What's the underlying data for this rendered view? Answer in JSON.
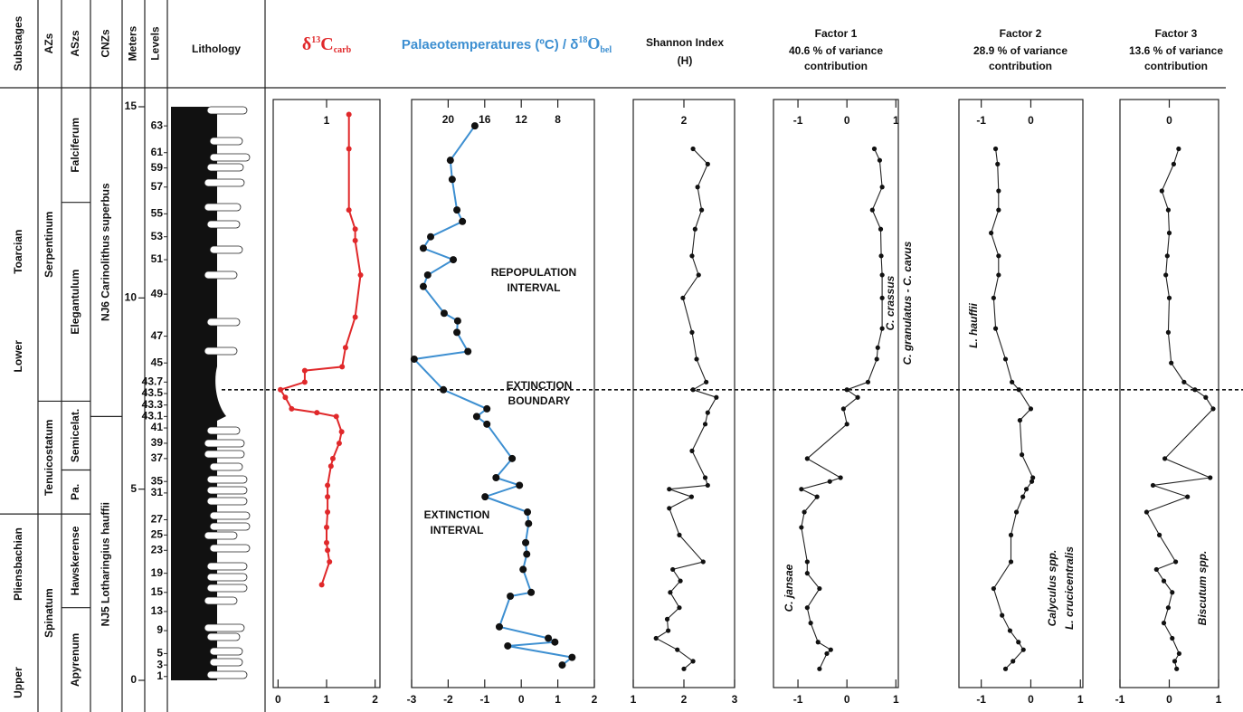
{
  "stratigraphy": {
    "headers": [
      "Substages",
      "AZs",
      "ASzs",
      "CNZs",
      "Meters",
      "Levels",
      "Lithology"
    ],
    "ylim": [
      0,
      15
    ],
    "yticks": [
      0,
      5,
      10,
      15
    ],
    "substages": {
      "names": [
        "Lower Toarcian",
        "Upper Pliensbachian"
      ],
      "boundaries": [
        4.35
      ]
    },
    "azs": {
      "names": [
        "Serpentinum",
        "Tenuicostatum",
        "Spinatum"
      ],
      "boundaries": [
        7.3,
        4.35
      ]
    },
    "aszs": {
      "names": [
        "Falciferum",
        "Elegantulum",
        "Semicelat.",
        "Pa.",
        "Hawskerense",
        "Apyrenum"
      ],
      "boundaries": [
        12.5,
        7.3,
        5.5,
        4.35,
        1.9
      ]
    },
    "cnzs": {
      "names": [
        "NJ6 Carinolithus superbus",
        "NJ5 Lotharingius hauffii"
      ],
      "boundaries": [
        6.9
      ]
    },
    "levels": {
      "labels": [
        "63",
        "61",
        "59",
        "57",
        "55",
        "53",
        "51",
        "49",
        "47",
        "45",
        "43.7",
        "43.5",
        "43.3",
        "43.1",
        "41",
        "39",
        "37",
        "35",
        "31",
        "27",
        "25",
        "23",
        "19",
        "15",
        "13",
        "9",
        "5",
        "3",
        "1"
      ],
      "heights": [
        14.5,
        13.8,
        13.4,
        12.9,
        12.2,
        11.6,
        11.0,
        10.1,
        9.0,
        8.3,
        7.8,
        7.5,
        7.2,
        6.9,
        6.6,
        6.2,
        5.8,
        5.2,
        4.9,
        4.2,
        3.8,
        3.4,
        2.8,
        2.3,
        1.8,
        1.3,
        0.7,
        0.4,
        0.1
      ]
    },
    "boundary_height": 7.6
  },
  "chart_data": [
    {
      "type": "line",
      "title_parts": [
        "δ",
        "13",
        "C",
        "carb"
      ],
      "color": "#e0282a",
      "marker_color": "#e0282a",
      "xlim": [
        -0.1,
        2.1
      ],
      "xticks": [
        0,
        1,
        2
      ],
      "xticks_top": [
        1
      ],
      "heights": [
        14.8,
        13.9,
        12.3,
        11.8,
        11.5,
        10.6,
        9.5,
        8.7,
        8.2,
        8.1,
        7.8,
        7.6,
        7.4,
        7.1,
        7.0,
        6.9,
        6.5,
        6.2,
        5.8,
        5.6,
        5.1,
        4.8,
        4.4,
        4.0,
        3.6,
        3.4,
        3.1,
        2.5
      ],
      "values": [
        1.46,
        1.46,
        1.46,
        1.59,
        1.59,
        1.7,
        1.59,
        1.39,
        1.32,
        0.55,
        0.55,
        0.05,
        0.15,
        0.28,
        0.8,
        1.2,
        1.31,
        1.26,
        1.13,
        1.09,
        1.02,
        1.02,
        1.02,
        1.0,
        1.0,
        1.02,
        1.06,
        0.9
      ]
    },
    {
      "type": "line",
      "title_parts": [
        "Palaeotemperatures (ºC) / δ",
        "18",
        "O",
        "bel"
      ],
      "color": "#3d8fd1",
      "marker_color": "#111111",
      "xlim": [
        -3,
        2
      ],
      "xticks": [
        -3,
        -2,
        -1,
        0,
        1,
        2
      ],
      "x2lim": [
        24,
        4
      ],
      "x2ticks": [
        20,
        16,
        12,
        8
      ],
      "annotations": [
        [
          "REPOPULATION",
          "INTERVAL"
        ],
        [
          "EXTINCTION",
          "BOUNDARY"
        ],
        [
          "EXTINCTION",
          "INTERVAL"
        ]
      ],
      "heights": [
        14.5,
        13.6,
        13.1,
        12.3,
        12.0,
        11.6,
        11.3,
        11.0,
        10.6,
        10.3,
        9.6,
        9.4,
        9.1,
        8.6,
        8.4,
        7.6,
        7.1,
        6.9,
        6.7,
        5.8,
        5.3,
        5.1,
        4.8,
        4.4,
        4.1,
        3.6,
        3.3,
        2.9,
        2.3,
        2.2,
        1.4,
        1.1,
        1.0,
        0.9,
        0.6,
        0.4
      ],
      "values": [
        -1.27,
        -1.94,
        -1.89,
        -1.76,
        -1.61,
        -2.48,
        -2.68,
        -1.86,
        -2.56,
        -2.68,
        -2.11,
        -1.74,
        -1.76,
        -1.46,
        -2.93,
        -2.13,
        -0.94,
        -1.22,
        -0.94,
        -0.25,
        -0.69,
        -0.05,
        -0.99,
        0.17,
        0.2,
        0.12,
        0.15,
        0.05,
        0.27,
        -0.3,
        -0.6,
        0.74,
        0.92,
        -0.37,
        1.39,
        1.12
      ]
    },
    {
      "type": "line",
      "title": "Shannon Index",
      "subtitle": [
        "(H)"
      ],
      "color": "#222222",
      "marker_color": "#111111",
      "xlim": [
        1,
        3
      ],
      "xticks": [
        1,
        2,
        3
      ],
      "xticks_top": [
        2
      ],
      "heights": [
        13.9,
        13.5,
        12.9,
        12.3,
        11.8,
        11.1,
        10.6,
        10.0,
        9.1,
        8.4,
        7.8,
        7.6,
        7.4,
        7.0,
        6.7,
        6.0,
        5.3,
        5.1,
        5.0,
        4.8,
        4.5,
        3.8,
        3.1,
        2.9,
        2.6,
        2.3,
        1.9,
        1.6,
        1.3,
        1.1,
        0.8,
        0.5,
        0.3
      ],
      "values": [
        2.18,
        2.47,
        2.27,
        2.35,
        2.22,
        2.16,
        2.29,
        1.98,
        2.16,
        2.25,
        2.44,
        2.18,
        2.64,
        2.47,
        2.42,
        2.16,
        2.42,
        2.47,
        1.71,
        2.15,
        1.71,
        1.91,
        2.38,
        1.78,
        1.93,
        1.73,
        1.91,
        1.67,
        1.69,
        1.45,
        1.87,
        2.18,
        2.0
      ]
    },
    {
      "type": "line",
      "title": "Factor 1",
      "subtitle": [
        "40.6 % of variance",
        "contribution"
      ],
      "color": "#222222",
      "marker_color": "#111111",
      "xlim": [
        -1.5,
        1.05
      ],
      "xticks": [
        -1,
        0,
        1
      ],
      "xticks_top": [
        -1,
        0,
        1
      ],
      "annotations": [
        [
          "C. jansae"
        ],
        [
          "C. crassus",
          "C. granulatus - C. cavus"
        ]
      ],
      "heights": [
        13.9,
        13.6,
        12.9,
        12.3,
        11.8,
        11.1,
        10.6,
        10.0,
        9.2,
        8.7,
        8.4,
        7.8,
        7.6,
        7.4,
        7.1,
        6.7,
        5.8,
        5.3,
        5.2,
        5.0,
        4.8,
        4.4,
        4.0,
        3.1,
        2.8,
        2.4,
        1.9,
        1.5,
        1.0,
        0.8,
        0.7,
        0.3
      ],
      "values": [
        0.56,
        0.67,
        0.72,
        0.52,
        0.69,
        0.7,
        0.72,
        0.72,
        0.72,
        0.63,
        0.61,
        0.43,
        0,
        0.22,
        -0.07,
        0,
        -0.81,
        -0.13,
        -0.35,
        -0.93,
        -0.61,
        -0.87,
        -0.93,
        -0.81,
        -0.81,
        -0.56,
        -0.81,
        -0.74,
        -0.59,
        -0.33,
        -0.41,
        -0.56
      ]
    },
    {
      "type": "line",
      "title": "Factor 2",
      "subtitle": [
        "28.9 % of variance",
        "contribution"
      ],
      "color": "#222222",
      "marker_color": "#111111",
      "xlim": [
        -1.45,
        1.05
      ],
      "xticks": [
        -1,
        0,
        1
      ],
      "xticks_top": [
        -1,
        0
      ],
      "annotations": [
        [
          "L. hauffii"
        ],
        [
          "Calyculus spp.",
          "L. crucicentralis"
        ]
      ],
      "heights": [
        13.9,
        13.5,
        12.8,
        12.3,
        11.7,
        11.1,
        10.6,
        10.0,
        9.2,
        8.4,
        7.8,
        7.6,
        7.1,
        6.8,
        5.9,
        5.3,
        5.2,
        5.0,
        4.8,
        4.4,
        3.8,
        3.1,
        2.4,
        1.7,
        1.3,
        1.0,
        0.8,
        0.5,
        0.3
      ],
      "values": [
        -0.71,
        -0.67,
        -0.65,
        -0.65,
        -0.8,
        -0.65,
        -0.65,
        -0.75,
        -0.71,
        -0.51,
        -0.38,
        -0.24,
        0,
        -0.22,
        -0.18,
        0.04,
        0.02,
        -0.09,
        -0.16,
        -0.29,
        -0.4,
        -0.4,
        -0.75,
        -0.58,
        -0.42,
        -0.25,
        -0.15,
        -0.36,
        -0.51
      ]
    },
    {
      "type": "line",
      "title": "Factor 3",
      "subtitle": [
        "13.6 % of variance",
        "contribution"
      ],
      "color": "#222222",
      "marker_color": "#111111",
      "xlim": [
        -1,
        1
      ],
      "xticks": [
        -1,
        0,
        1
      ],
      "xticks_top": [
        0
      ],
      "annotations": [
        [
          "Biscutum spp."
        ]
      ],
      "heights": [
        13.9,
        13.5,
        12.8,
        12.3,
        11.7,
        11.1,
        10.6,
        10.0,
        9.1,
        8.3,
        7.8,
        7.6,
        7.4,
        7.1,
        5.8,
        5.3,
        5.1,
        4.8,
        4.4,
        3.8,
        3.1,
        2.9,
        2.6,
        2.3,
        1.9,
        1.5,
        1.1,
        0.7,
        0.5,
        0.3
      ],
      "values": [
        0.19,
        0.09,
        -0.15,
        -0.02,
        0,
        -0.04,
        -0.07,
        0,
        -0.02,
        0.04,
        0.3,
        0.52,
        0.74,
        0.89,
        -0.09,
        0.83,
        -0.33,
        0.37,
        -0.46,
        -0.2,
        0.13,
        -0.26,
        -0.11,
        0.06,
        -0.02,
        -0.11,
        0.06,
        0.2,
        0.11,
        0.15
      ]
    }
  ]
}
